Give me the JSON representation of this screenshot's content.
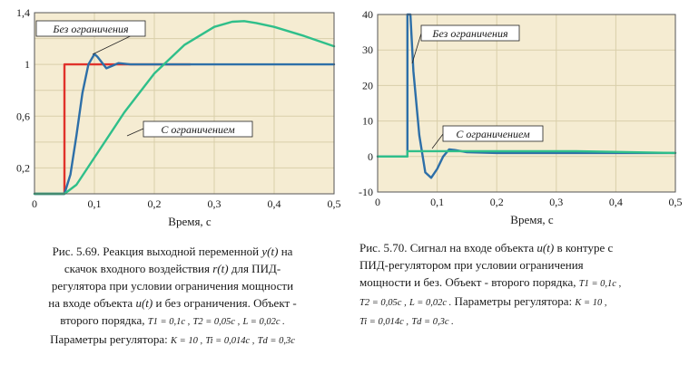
{
  "colors": {
    "plot_background": "#f5ecd2",
    "grid": "#d9cfaa",
    "red_step": "#e0322b",
    "blue_curve": "#2d6fa8",
    "green_curve": "#2fbf8a",
    "axis_frame": "#555555"
  },
  "chart_data": [
    {
      "type": "line",
      "xlabel": "Время, с",
      "ylabel": "",
      "xlim": [
        0,
        0.5
      ],
      "ylim": [
        0,
        1.4
      ],
      "xticks": [
        "0",
        "0,1",
        "0,2",
        "0,3",
        "0,4",
        "0,5"
      ],
      "yticks": [
        "0,2",
        "0,6",
        "1",
        "1,4"
      ],
      "grid": true,
      "annotations": [
        "Без ограничения",
        "С ограничением"
      ],
      "series": [
        {
          "color_key": "red_step",
          "x": [
            0,
            0.05,
            0.05,
            0.26
          ],
          "y": [
            0,
            0,
            1,
            1
          ]
        },
        {
          "color_key": "blue_curve",
          "x": [
            0,
            0.05,
            0.06,
            0.07,
            0.08,
            0.09,
            0.1,
            0.105,
            0.11,
            0.12,
            0.13,
            0.14,
            0.16,
            0.5
          ],
          "y": [
            0,
            0,
            0.15,
            0.45,
            0.78,
            1.0,
            1.08,
            1.06,
            1.03,
            0.97,
            0.99,
            1.01,
            1.0,
            1.0
          ]
        },
        {
          "color_key": "green_curve",
          "x": [
            0,
            0.05,
            0.07,
            0.1,
            0.15,
            0.2,
            0.25,
            0.3,
            0.33,
            0.35,
            0.37,
            0.4,
            0.45,
            0.5
          ],
          "y": [
            0,
            0,
            0.07,
            0.28,
            0.63,
            0.93,
            1.15,
            1.29,
            1.33,
            1.335,
            1.32,
            1.29,
            1.22,
            1.14
          ]
        }
      ]
    },
    {
      "type": "line",
      "xlabel": "Время, с",
      "ylabel": "",
      "xlim": [
        0,
        0.5
      ],
      "ylim": [
        -10,
        40
      ],
      "xticks": [
        "0",
        "0,1",
        "0,2",
        "0,3",
        "0,4",
        "0,5"
      ],
      "yticks": [
        "-10",
        "0",
        "10",
        "20",
        "30",
        "40"
      ],
      "grid": true,
      "annotations": [
        "Без ограничения",
        "С ограничением"
      ],
      "series": [
        {
          "color_key": "blue_curve",
          "x": [
            0,
            0.05,
            0.05,
            0.055,
            0.06,
            0.07,
            0.08,
            0.09,
            0.1,
            0.11,
            0.12,
            0.13,
            0.15,
            0.2,
            0.5
          ],
          "y": [
            0,
            0,
            40,
            40,
            24,
            6,
            -4.5,
            -6,
            -3.5,
            0,
            2,
            1.8,
            1.2,
            1,
            1
          ]
        },
        {
          "color_key": "green_curve",
          "x": [
            0,
            0.05,
            0.05,
            0.33,
            0.5
          ],
          "y": [
            0,
            0,
            1.5,
            1.5,
            1
          ]
        }
      ]
    }
  ],
  "captions": {
    "left": {
      "l1": "Рис. 5.69. Реакция выходной переменной ",
      "l1_var": "y(t)",
      "l1_end": " на",
      "l2": "скачок входного воздействия ",
      "l2_var": "r(t)",
      "l2_end": " для ПИД-",
      "l3": "регулятора при условии ограничения мощности",
      "l4": "на входе объекта ",
      "l4_var": "u(t)",
      "l4_end": " и без ограничения. Объект -",
      "l5": "второго порядка, ",
      "l5_p1": "T1 = 0,1c ,",
      "l5_p2": "T2 = 0,05c ,",
      "l5_p3": "L = 0,02c .",
      "l6": "Параметры регулятора: ",
      "l6_p1": "K = 10 ,",
      "l6_p2": "Ti = 0,014c ,",
      "l6_p3": "Td = 0,3c"
    },
    "right": {
      "l1": "Рис. 5.70. Сигнал на входе объекта ",
      "l1_var": "u(t)",
      "l1_end": " в контуре с",
      "l2": "ПИД-регулятором при условии ограничения",
      "l3": "мощности и без. Объект - второго порядка, ",
      "l3_p1": "T1 = 0,1c ,",
      "l4_p1": "T2 = 0,05c ,",
      "l4_p2": "L = 0,02c .",
      "l4": " Параметры регулятора: ",
      "l4_p3": "K = 10 ,",
      "l5_p1": "Ti = 0,014c ,",
      "l5_p2": "Td = 0,3c ."
    }
  }
}
